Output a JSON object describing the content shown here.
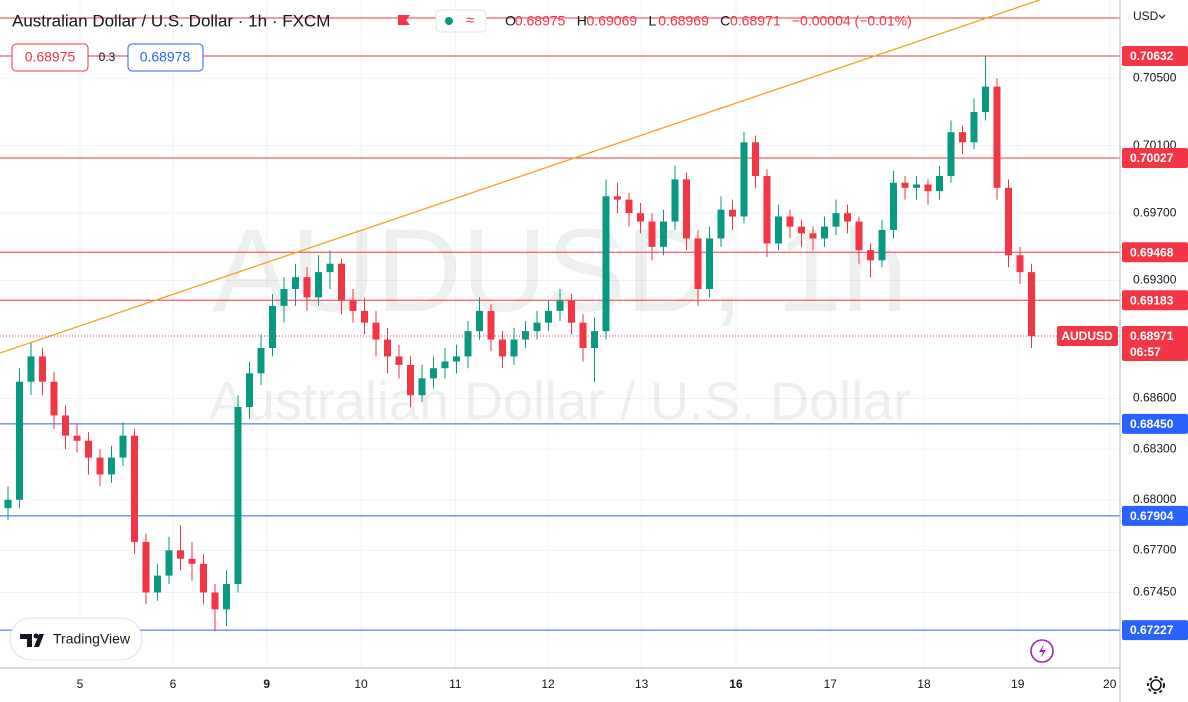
{
  "chart_data": {
    "type": "candlestick",
    "title": "Australian Dollar / U.S. Dollar · 1h · FXCM",
    "ohlc": [
      {
        "label": "O",
        "value": "0.68975"
      },
      {
        "label": "H",
        "value": "0.69069"
      },
      {
        "label": "L",
        "value": "0.68969"
      },
      {
        "label": "C",
        "value": "0.68971"
      }
    ],
    "change": "−0.00004 (−0.01%)",
    "bid": "0.68975",
    "spread": "0.3",
    "ask": "0.68978",
    "currency": "USD",
    "watermark": "AUDUSD, 1h",
    "watermark_subtitle": "Australian Dollar / U.S. Dollar",
    "brand": "TradingView",
    "up_color": "#089981",
    "down_color": "#f23645",
    "ylim": [
      0.67002,
      0.70964
    ],
    "yticks": [
      {
        "value": 0.6745,
        "label": "0.67450"
      },
      {
        "value": 0.677,
        "label": "0.67700"
      },
      {
        "value": 0.68,
        "label": "0.68000"
      },
      {
        "value": 0.683,
        "label": "0.68300"
      },
      {
        "value": 0.686,
        "label": "0.68600"
      },
      {
        "value": 0.693,
        "label": "0.69300"
      },
      {
        "value": 0.697,
        "label": "0.69700"
      },
      {
        "value": 0.701,
        "label": "0.70100"
      },
      {
        "value": 0.705,
        "label": "0.70500"
      }
    ],
    "xticks": [
      {
        "value": 6.26,
        "label": "5"
      },
      {
        "value": 14.35,
        "label": "6"
      },
      {
        "value": 22.5,
        "label": "9",
        "bold": true
      },
      {
        "value": 30.7,
        "label": "10"
      },
      {
        "value": 38.9,
        "label": "11"
      },
      {
        "value": 46.96,
        "label": "12"
      },
      {
        "value": 55.1,
        "label": "13"
      },
      {
        "value": 63.3,
        "label": "16",
        "bold": true
      },
      {
        "value": 71.5,
        "label": "17"
      },
      {
        "value": 79.65,
        "label": "18"
      },
      {
        "value": 87.8,
        "label": "19"
      },
      {
        "value": 95.8,
        "label": "20"
      }
    ],
    "levels": [
      {
        "value": 0.70857,
        "color": "#f23645"
      },
      {
        "value": 0.70632,
        "label": "0.70632",
        "color": "#f23645"
      },
      {
        "value": 0.70027,
        "label": "0.70027",
        "color": "#f23645"
      },
      {
        "value": 0.69468,
        "label": "0.69468",
        "color": "#f23645"
      },
      {
        "value": 0.69183,
        "label": "0.69183",
        "color": "#f23645"
      },
      {
        "value": 0.6845,
        "label": "0.68450",
        "color": "#2962ff"
      },
      {
        "value": 0.67904,
        "label": "0.67904",
        "color": "#2962ff"
      },
      {
        "value": 0.67227,
        "label": "0.67227",
        "color": "#2962ff"
      }
    ],
    "trendline": {
      "start": [
        -0.7,
        0.6887
      ],
      "end": [
        89.7,
        0.70964
      ],
      "color": "#f7a21b"
    },
    "last": {
      "symbol": "AUDUSD",
      "value": 0.68971,
      "countdown": "06:57",
      "color": "#f23645"
    },
    "candles": [
      [
        0.6795,
        0.6808,
        0.6788,
        0.68
      ],
      [
        0.68,
        0.6878,
        0.6795,
        0.687
      ],
      [
        0.687,
        0.6893,
        0.6862,
        0.6885
      ],
      [
        0.6885,
        0.689,
        0.6862,
        0.687
      ],
      [
        0.687,
        0.6876,
        0.6842,
        0.685
      ],
      [
        0.685,
        0.6856,
        0.683,
        0.6838
      ],
      [
        0.6838,
        0.6845,
        0.6828,
        0.6835
      ],
      [
        0.6835,
        0.684,
        0.6815,
        0.6825
      ],
      [
        0.6825,
        0.683,
        0.6808,
        0.6815
      ],
      [
        0.6815,
        0.6832,
        0.681,
        0.6825
      ],
      [
        0.6825,
        0.6846,
        0.682,
        0.6838
      ],
      [
        0.6838,
        0.6842,
        0.6768,
        0.6775
      ],
      [
        0.6775,
        0.678,
        0.6738,
        0.6745
      ],
      [
        0.6745,
        0.6762,
        0.674,
        0.6755
      ],
      [
        0.6755,
        0.6778,
        0.675,
        0.677
      ],
      [
        0.677,
        0.6785,
        0.6758,
        0.6765
      ],
      [
        0.6765,
        0.6775,
        0.6752,
        0.6762
      ],
      [
        0.6762,
        0.6768,
        0.6738,
        0.6745
      ],
      [
        0.6745,
        0.675,
        0.6722,
        0.6735
      ],
      [
        0.6735,
        0.6758,
        0.6725,
        0.675
      ],
      [
        0.675,
        0.6862,
        0.6745,
        0.6855
      ],
      [
        0.6855,
        0.6882,
        0.6848,
        0.6875
      ],
      [
        0.6875,
        0.6898,
        0.6868,
        0.689
      ],
      [
        0.689,
        0.6922,
        0.6885,
        0.6915
      ],
      [
        0.6915,
        0.6932,
        0.6905,
        0.6925
      ],
      [
        0.6925,
        0.694,
        0.6915,
        0.6932
      ],
      [
        0.6932,
        0.6938,
        0.6912,
        0.692
      ],
      [
        0.692,
        0.6945,
        0.6915,
        0.6935
      ],
      [
        0.6935,
        0.6948,
        0.6925,
        0.694
      ],
      [
        0.694,
        0.6943,
        0.691,
        0.6918
      ],
      [
        0.6918,
        0.6925,
        0.6905,
        0.6912
      ],
      [
        0.6912,
        0.692,
        0.6898,
        0.6905
      ],
      [
        0.6905,
        0.6912,
        0.6885,
        0.6895
      ],
      [
        0.6895,
        0.6902,
        0.6875,
        0.6885
      ],
      [
        0.6885,
        0.6892,
        0.6872,
        0.688
      ],
      [
        0.688,
        0.6885,
        0.6855,
        0.6862
      ],
      [
        0.6862,
        0.688,
        0.6858,
        0.6872
      ],
      [
        0.6872,
        0.6885,
        0.6866,
        0.6878
      ],
      [
        0.6878,
        0.689,
        0.6872,
        0.6882
      ],
      [
        0.6882,
        0.6892,
        0.6875,
        0.6885
      ],
      [
        0.6885,
        0.6906,
        0.6878,
        0.69
      ],
      [
        0.69,
        0.692,
        0.6895,
        0.6912
      ],
      [
        0.6912,
        0.6916,
        0.6888,
        0.6895
      ],
      [
        0.6895,
        0.69,
        0.6878,
        0.6885
      ],
      [
        0.6885,
        0.6902,
        0.688,
        0.6895
      ],
      [
        0.6895,
        0.6906,
        0.689,
        0.69
      ],
      [
        0.69,
        0.6912,
        0.6895,
        0.6905
      ],
      [
        0.6905,
        0.6918,
        0.69,
        0.6912
      ],
      [
        0.6912,
        0.6925,
        0.6906,
        0.6918
      ],
      [
        0.6918,
        0.6922,
        0.6898,
        0.6905
      ],
      [
        0.6905,
        0.691,
        0.6882,
        0.689
      ],
      [
        0.689,
        0.6908,
        0.687,
        0.69
      ],
      [
        0.69,
        0.699,
        0.6895,
        0.698
      ],
      [
        0.698,
        0.6988,
        0.697,
        0.6978
      ],
      [
        0.6978,
        0.6982,
        0.6962,
        0.697
      ],
      [
        0.697,
        0.6976,
        0.6958,
        0.6965
      ],
      [
        0.6965,
        0.697,
        0.6942,
        0.695
      ],
      [
        0.695,
        0.6972,
        0.6945,
        0.6965
      ],
      [
        0.6965,
        0.6998,
        0.696,
        0.699
      ],
      [
        0.699,
        0.6994,
        0.6948,
        0.6955
      ],
      [
        0.6955,
        0.696,
        0.6915,
        0.6925
      ],
      [
        0.6925,
        0.6962,
        0.692,
        0.6955
      ],
      [
        0.6955,
        0.698,
        0.695,
        0.6972
      ],
      [
        0.6972,
        0.6978,
        0.696,
        0.6968
      ],
      [
        0.6968,
        0.7018,
        0.6964,
        0.7012
      ],
      [
        0.7012,
        0.7016,
        0.6985,
        0.6992
      ],
      [
        0.6992,
        0.6996,
        0.6944,
        0.6952
      ],
      [
        0.6952,
        0.6975,
        0.6948,
        0.6968
      ],
      [
        0.6968,
        0.6972,
        0.6955,
        0.6962
      ],
      [
        0.6962,
        0.6966,
        0.695,
        0.6958
      ],
      [
        0.6958,
        0.6962,
        0.6948,
        0.6955
      ],
      [
        0.6955,
        0.6968,
        0.695,
        0.6962
      ],
      [
        0.6962,
        0.6978,
        0.6957,
        0.697
      ],
      [
        0.697,
        0.6975,
        0.6958,
        0.6965
      ],
      [
        0.6965,
        0.6968,
        0.694,
        0.6948
      ],
      [
        0.6948,
        0.6952,
        0.6932,
        0.6942
      ],
      [
        0.6942,
        0.6966,
        0.6938,
        0.696
      ],
      [
        0.696,
        0.6995,
        0.6955,
        0.6988
      ],
      [
        0.6988,
        0.6992,
        0.6978,
        0.6985
      ],
      [
        0.6985,
        0.6992,
        0.6978,
        0.6987
      ],
      [
        0.6987,
        0.699,
        0.6975,
        0.6983
      ],
      [
        0.6983,
        0.6998,
        0.6978,
        0.6992
      ],
      [
        0.6992,
        0.7025,
        0.6988,
        0.7018
      ],
      [
        0.7018,
        0.7022,
        0.7005,
        0.7012
      ],
      [
        0.7012,
        0.7038,
        0.7008,
        0.703
      ],
      [
        0.703,
        0.7063,
        0.7025,
        0.7045
      ],
      [
        0.7045,
        0.705,
        0.6978,
        0.6985
      ],
      [
        0.6985,
        0.699,
        0.6938,
        0.6945
      ],
      [
        0.6945,
        0.695,
        0.6928,
        0.6935
      ],
      [
        0.6935,
        0.694,
        0.689,
        0.6897
      ]
    ]
  }
}
